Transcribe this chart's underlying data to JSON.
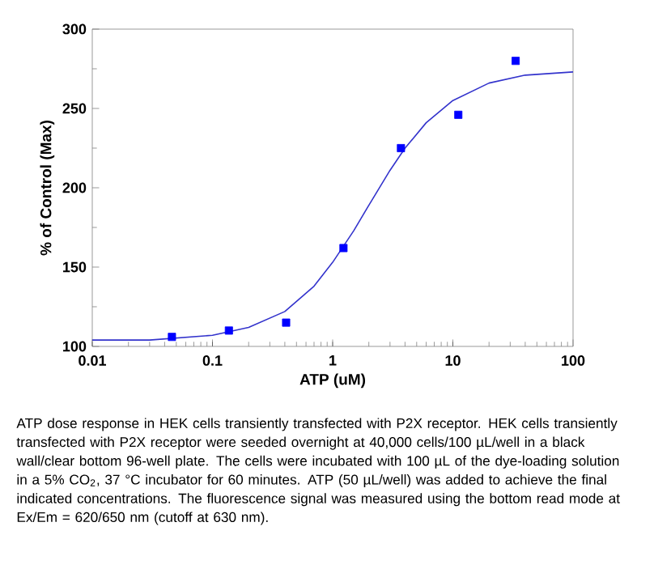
{
  "chart_data": {
    "type": "scatter",
    "xlabel": "ATP (uM)",
    "ylabel": "% of Control (Max)",
    "log": "x",
    "xlim": [
      0.01,
      100
    ],
    "xticks": [
      0.01,
      0.1,
      1,
      10,
      100
    ],
    "ylim": [
      100,
      300
    ],
    "yticks": [
      100,
      150,
      200,
      250,
      300
    ],
    "grid": false,
    "series": [
      {
        "marker": "square",
        "color": "#0000ff",
        "x": [
          0.046,
          0.137,
          0.41,
          1.23,
          3.7,
          11.1,
          33.3
        ],
        "values": [
          106,
          110,
          115,
          162,
          225,
          246,
          280
        ]
      },
      {
        "type": "line",
        "marker": "none",
        "color": "#3333cc",
        "x": [
          0.01,
          0.03,
          0.1,
          0.2,
          0.4,
          0.7,
          1,
          1.5,
          2,
          3,
          4,
          6,
          10,
          20,
          40,
          100
        ],
        "values": [
          104,
          104,
          107,
          112,
          122,
          138,
          153,
          173,
          189,
          211,
          225,
          241,
          255,
          266,
          271,
          273
        ]
      }
    ],
    "annotations": [
      "ATP dose response in HEK cells transiently transfected with P2X receptor. HEK cells transiently transfected with P2X receptor were seeded overnight at 40,000 cells/100 µL/well in a black wall/clear bottom 96-well plate. The cells were incubated with 100 µL of the dye-loading solution in a 5% CO$_{2}$, 37 °C incubator for 60 minutes. ATP (50 µL/well) was added to achieve the final indicated concentrations. The fluorescence signal was measured using the bottom read mode at Ex/Em = 620/650 nm (cutoff at 630 nm)."
    ]
  }
}
